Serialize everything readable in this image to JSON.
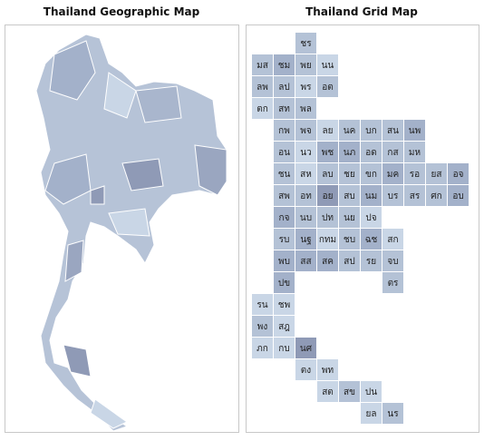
{
  "geographic_map": {
    "title": "Thailand Geographic Map"
  },
  "grid_map": {
    "title": "Thailand Grid Map",
    "rows": [
      [
        null,
        null,
        {
          "label": "ชร",
          "color": "#b4c2d6"
        },
        null,
        null,
        null,
        null,
        null,
        null,
        null
      ],
      [
        {
          "label": "มส",
          "color": "#b4c2d6"
        },
        {
          "label": "ชม",
          "color": "#a3b1ca"
        },
        {
          "label": "พย",
          "color": "#b4c2d6"
        },
        {
          "label": "นน",
          "color": "#c9d6e6"
        },
        null,
        null,
        null,
        null,
        null,
        null
      ],
      [
        {
          "label": "ลพ",
          "color": "#b4c2d6"
        },
        {
          "label": "ลป",
          "color": "#b4c2d6"
        },
        {
          "label": "พร",
          "color": "#c9d6e6"
        },
        {
          "label": "อต",
          "color": "#b4c2d6"
        },
        null,
        null,
        null,
        null,
        null,
        null
      ],
      [
        {
          "label": "ตก",
          "color": "#c9d6e6"
        },
        {
          "label": "สท",
          "color": "#b4c2d6"
        },
        {
          "label": "พล",
          "color": "#b4c2d6"
        },
        null,
        null,
        null,
        null,
        null,
        null,
        null
      ],
      [
        null,
        {
          "label": "กพ",
          "color": "#b4c2d6"
        },
        {
          "label": "พจ",
          "color": "#b4c2d6"
        },
        {
          "label": "ลย",
          "color": "#c9d6e6"
        },
        {
          "label": "นค",
          "color": "#b4c2d6"
        },
        {
          "label": "บก",
          "color": "#b4c2d6"
        },
        {
          "label": "สน",
          "color": "#b4c2d6"
        },
        {
          "label": "นพ",
          "color": "#a3b1ca"
        },
        null,
        null
      ],
      [
        null,
        {
          "label": "อน",
          "color": "#b4c2d6"
        },
        {
          "label": "นว",
          "color": "#c9d6e6"
        },
        {
          "label": "พช",
          "color": "#a3b1ca"
        },
        {
          "label": "นภ",
          "color": "#a3b1ca"
        },
        {
          "label": "อด",
          "color": "#b4c2d6"
        },
        {
          "label": "กส",
          "color": "#b4c2d6"
        },
        {
          "label": "มห",
          "color": "#b4c2d6"
        },
        null,
        null
      ],
      [
        null,
        {
          "label": "ชน",
          "color": "#b4c2d6"
        },
        {
          "label": "สห",
          "color": "#c9d6e6"
        },
        {
          "label": "ลบ",
          "color": "#b4c2d6"
        },
        {
          "label": "ชย",
          "color": "#b4c2d6"
        },
        {
          "label": "ขก",
          "color": "#b4c2d6"
        },
        {
          "label": "มค",
          "color": "#a3b1ca"
        },
        {
          "label": "รอ",
          "color": "#b4c2d6"
        },
        {
          "label": "ยส",
          "color": "#b4c2d6"
        },
        {
          "label": "อจ",
          "color": "#a3b1ca"
        }
      ],
      [
        null,
        {
          "label": "สพ",
          "color": "#b4c2d6"
        },
        {
          "label": "อท",
          "color": "#b4c2d6"
        },
        {
          "label": "อย",
          "color": "#8f9ab6"
        },
        {
          "label": "สบ",
          "color": "#b4c2d6"
        },
        {
          "label": "นม",
          "color": "#a3b1ca"
        },
        {
          "label": "บร",
          "color": "#b4c2d6"
        },
        {
          "label": "สร",
          "color": "#b4c2d6"
        },
        {
          "label": "ศก",
          "color": "#b4c2d6"
        },
        {
          "label": "อบ",
          "color": "#a3b1ca"
        }
      ],
      [
        null,
        {
          "label": "กจ",
          "color": "#a3b1ca"
        },
        {
          "label": "นบ",
          "color": "#b4c2d6"
        },
        {
          "label": "ปท",
          "color": "#b4c2d6"
        },
        {
          "label": "นย",
          "color": "#b4c2d6"
        },
        {
          "label": "ปจ",
          "color": "#c9d6e6"
        },
        null,
        null,
        null,
        null
      ],
      [
        null,
        {
          "label": "รบ",
          "color": "#b4c2d6"
        },
        {
          "label": "นฐ",
          "color": "#a3b1ca"
        },
        {
          "label": "กทม",
          "color": "#c9d6e6"
        },
        {
          "label": "ชบ",
          "color": "#b4c2d6"
        },
        {
          "label": "ฉช",
          "color": "#a3b1ca"
        },
        {
          "label": "สก",
          "color": "#c9d6e6"
        },
        null,
        null,
        null
      ],
      [
        null,
        {
          "label": "พบ",
          "color": "#a3b1ca"
        },
        {
          "label": "สส",
          "color": "#a3b1ca"
        },
        {
          "label": "สค",
          "color": "#a3b1ca"
        },
        {
          "label": "สป",
          "color": "#b4c2d6"
        },
        {
          "label": "รย",
          "color": "#b4c2d6"
        },
        {
          "label": "จบ",
          "color": "#b4c2d6"
        },
        null,
        null,
        null
      ],
      [
        null,
        {
          "label": "ปข",
          "color": "#a3b1ca"
        },
        null,
        null,
        null,
        null,
        {
          "label": "ตร",
          "color": "#b4c2d6"
        },
        null,
        null,
        null
      ],
      [
        {
          "label": "รน",
          "color": "#c9d6e6"
        },
        {
          "label": "ชพ",
          "color": "#c9d6e6"
        },
        null,
        null,
        null,
        null,
        null,
        null,
        null,
        null
      ],
      [
        {
          "label": "พง",
          "color": "#b4c2d6"
        },
        {
          "label": "สฎ",
          "color": "#c9d6e6"
        },
        null,
        null,
        null,
        null,
        null,
        null,
        null,
        null
      ],
      [
        {
          "label": "ภก",
          "color": "#c9d6e6"
        },
        {
          "label": "กบ",
          "color": "#c9d6e6"
        },
        {
          "label": "นศ",
          "color": "#8f9ab6"
        },
        null,
        null,
        null,
        null,
        null,
        null,
        null
      ],
      [
        null,
        null,
        {
          "label": "ตง",
          "color": "#c9d6e6"
        },
        {
          "label": "พท",
          "color": "#c9d6e6"
        },
        null,
        null,
        null,
        null,
        null,
        null
      ],
      [
        null,
        null,
        null,
        {
          "label": "สต",
          "color": "#c9d6e6"
        },
        {
          "label": "สข",
          "color": "#b4c2d6"
        },
        {
          "label": "ปน",
          "color": "#c9d6e6"
        },
        null,
        null,
        null,
        null
      ],
      [
        null,
        null,
        null,
        null,
        null,
        {
          "label": "ยล",
          "color": "#c9d6e6"
        },
        {
          "label": "นร",
          "color": "#b4c2d6"
        },
        null,
        null,
        null
      ]
    ]
  }
}
